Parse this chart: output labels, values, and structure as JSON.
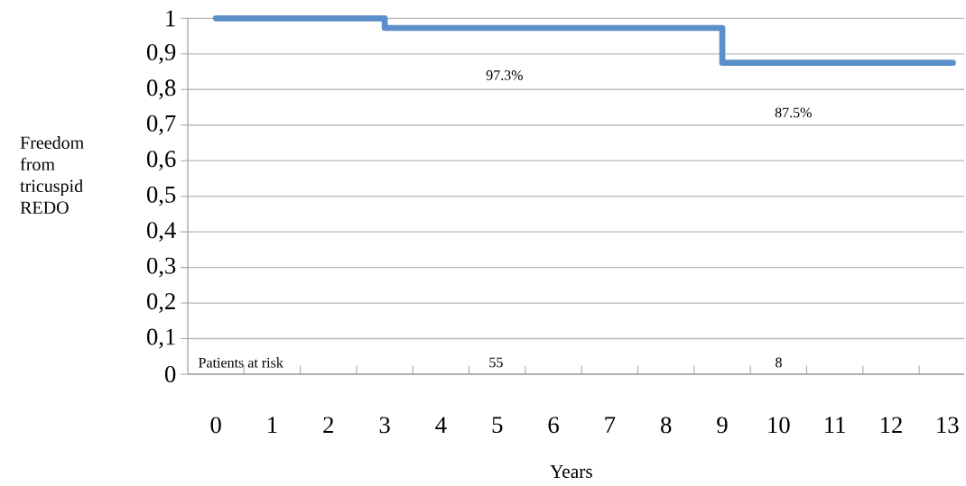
{
  "chart_data": {
    "type": "step",
    "xlabel": "Years",
    "ylabel": "Freedom from tricuspid REDO",
    "x": [
      0,
      3,
      9,
      13.1
    ],
    "series": [
      {
        "color": "#5b8fc9",
        "values": [
          1,
          0.973,
          0.875,
          0.875
        ]
      }
    ],
    "xlim": [
      -0.5,
      13.3
    ],
    "xticks": [
      {
        "value": 0.5,
        "label": null
      },
      {
        "value": 1.5,
        "label": null
      },
      {
        "value": 2.5,
        "label": null
      },
      {
        "value": 3.5,
        "label": null
      },
      {
        "value": 4.5,
        "label": null
      },
      {
        "value": 5.5,
        "label": null
      },
      {
        "value": 6.5,
        "label": null
      },
      {
        "value": 7.5,
        "label": null
      },
      {
        "value": 8.5,
        "label": null
      },
      {
        "value": 9.5,
        "label": null
      },
      {
        "value": 10.5,
        "label": null
      },
      {
        "value": 11.5,
        "label": null
      },
      {
        "value": 12.5,
        "label": null
      },
      0,
      1,
      2,
      3,
      4,
      5,
      6,
      7,
      8,
      9,
      10,
      11,
      12,
      13
    ],
    "ylim": [
      0,
      1
    ],
    "yticks": [
      0,
      {
        "value": 0.1,
        "label": "0,1"
      },
      {
        "value": 0.2,
        "label": "0,2"
      },
      {
        "value": 0.3,
        "label": "0,3"
      },
      {
        "value": 0.4,
        "label": "0,4"
      },
      {
        "value": 0.5,
        "label": "0,5"
      },
      {
        "value": 0.6,
        "label": "0,6"
      },
      {
        "value": 0.7,
        "label": "0,7"
      },
      {
        "value": 0.8,
        "label": "0,8"
      },
      {
        "value": 0.9,
        "label": "0,9"
      },
      1
    ],
    "grid": "y",
    "line_style": "solid",
    "annotations": [
      "97.3%",
      "87.5%",
      "Patients at risk",
      "55",
      "8"
    ]
  }
}
